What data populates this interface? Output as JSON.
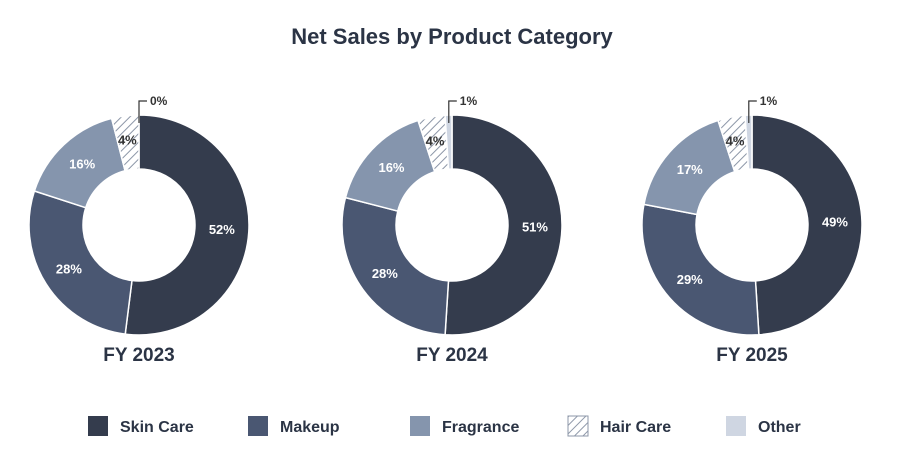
{
  "chart_data": {
    "type": "donut",
    "title": "Net Sales by Product Category",
    "categories": [
      "Skin Care",
      "Makeup",
      "Fragrance",
      "Hair Care",
      "Other"
    ],
    "colors": [
      "#343c4d",
      "#4a5772",
      "#8595ad",
      "hatch",
      "#cfd6e2"
    ],
    "charts": [
      {
        "label": "FY 2023",
        "values": [
          52,
          28,
          16,
          4,
          0
        ],
        "labels": [
          "52%",
          "28%",
          "16%",
          "4%",
          "0%"
        ]
      },
      {
        "label": "FY 2024",
        "values": [
          51,
          28,
          16,
          4,
          1
        ],
        "labels": [
          "51%",
          "28%",
          "16%",
          "4%",
          "1%"
        ]
      },
      {
        "label": "FY 2025",
        "values": [
          49,
          29,
          17,
          4,
          1
        ],
        "labels": [
          "49%",
          "29%",
          "17%",
          "4%",
          "1%"
        ]
      }
    ]
  }
}
